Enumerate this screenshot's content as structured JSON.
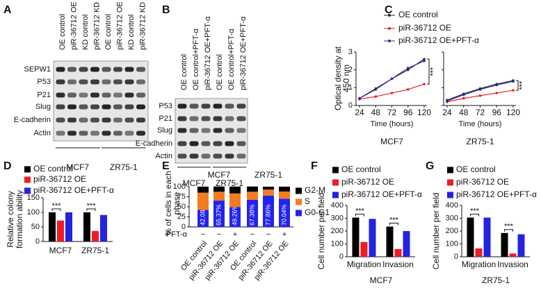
{
  "blots": [
    {
      "panel": "A",
      "lanes": [
        "OE control",
        "piR-36712 OE",
        "KD control",
        "piR-36712 KD",
        "OE control",
        "piR-36712 OE",
        "KD control",
        "piR-36712 KD"
      ],
      "proteins": [
        "SEPW1",
        "P53",
        "P21",
        "Slug",
        "E-cadherin",
        "Actin"
      ],
      "groups": [
        "MCF7",
        "ZR75-1"
      ]
    },
    {
      "panel": "B",
      "lanes": [
        "OE control",
        "OE control+PFT-α",
        "piR-36712 OE+PFT-α",
        "OE control",
        "OE control+PFT-α",
        "piR-36712 OE+PFT-α"
      ],
      "proteins": [
        "P53",
        "P21",
        "Slug",
        "E-cadherin",
        "Actin"
      ],
      "groups": [
        "MCF7",
        "ZR75-1"
      ]
    }
  ],
  "chart_data": [
    {
      "panel": "C",
      "type": "line",
      "ylabel": [
        "Optical density at",
        "450 nm"
      ],
      "xlabel": "Time (hours)",
      "x": [
        24,
        48,
        72,
        96,
        120
      ],
      "xlim": [
        24,
        120
      ],
      "xticks": [
        24,
        48,
        72,
        96,
        120
      ],
      "ylim": [
        0,
        3
      ],
      "yticks": [
        0,
        1,
        2,
        3
      ],
      "series": [
        {
          "name": "OE control",
          "color": "#222222"
        },
        {
          "name": "piR-36712 OE",
          "color": "#e8202a"
        },
        {
          "name": "piR-36712 OE+PFT-α",
          "color": "#2a2aa8"
        }
      ],
      "subplots": [
        {
          "title": "MCF7",
          "annotation": "***",
          "values": [
            [
              0.4,
              0.9,
              1.5,
              2.0,
              2.6
            ],
            [
              0.35,
              0.5,
              0.7,
              0.9,
              1.2
            ],
            [
              0.4,
              0.95,
              1.5,
              2.1,
              2.5
            ]
          ]
        },
        {
          "title": "ZR75-1",
          "annotation": "***",
          "values": [
            [
              0.3,
              0.65,
              0.95,
              1.2,
              1.4
            ],
            [
              0.2,
              0.4,
              0.55,
              0.7,
              0.85
            ],
            [
              0.25,
              0.6,
              0.9,
              1.15,
              1.35
            ]
          ]
        }
      ]
    },
    {
      "panel": "D",
      "type": "bar",
      "ylabel": [
        "Relative colony",
        "formation ability"
      ],
      "categories": [
        "MCF7",
        "ZR75-1"
      ],
      "ylim": [
        0,
        150
      ],
      "yticks": [
        0,
        50,
        100,
        150
      ],
      "annotations": [
        "***",
        "***"
      ],
      "series": [
        {
          "name": "OE control",
          "color": "#000000",
          "values": [
            100,
            100
          ]
        },
        {
          "name": "piR-36712 OE",
          "color": "#ee1c25",
          "values": [
            72,
            36
          ]
        },
        {
          "name": "piR-36712 OE+PFT-α",
          "color": "#2323e0",
          "values": [
            100,
            91
          ]
        }
      ]
    },
    {
      "panel": "E",
      "type": "stacked_bar",
      "ylabel": [
        "% of cells in each",
        "phase"
      ],
      "groups": [
        "MCF7",
        "ZR75-1"
      ],
      "categories": [
        "OE control",
        "piR-36712 OE",
        "piR-36712 OE",
        "OE control",
        "piR-36712 OE",
        "piR-36712 OE"
      ],
      "pft_label": "PFT-α",
      "pft": [
        "−",
        "−",
        "+",
        "−",
        "−",
        "+"
      ],
      "ylim": [
        0,
        100
      ],
      "yticks": [
        0,
        25,
        50,
        75,
        100
      ],
      "series": [
        {
          "name": "G0-G1",
          "color": "#2323f0",
          "values": [
            42.08,
            65.37,
            49.26,
            67.38,
            77.86,
            70.04
          ],
          "value_labels": [
            "42.08%",
            "65.37%",
            "49.26%",
            "67.38%",
            "77.86%",
            "70.04%"
          ]
        },
        {
          "name": "S",
          "color": "#f47b20",
          "values": [
            43,
            22,
            34,
            20,
            15,
            18
          ]
        },
        {
          "name": "G2-M",
          "color": "#000000",
          "values": [
            15,
            13,
            17,
            13,
            7,
            12
          ]
        }
      ]
    },
    {
      "panel": "F",
      "type": "bar",
      "subtitle": "MCF7",
      "ylabel": [
        "Cell number per field"
      ],
      "categories": [
        "Migration",
        "Invasion"
      ],
      "ylim": [
        0,
        400
      ],
      "yticks": [
        0,
        100,
        200,
        300,
        400
      ],
      "annotations": [
        "***",
        "***"
      ],
      "series": [
        {
          "name": "OE control",
          "color": "#000000",
          "values": [
            305,
            235
          ]
        },
        {
          "name": "piR-36712 OE",
          "color": "#ee1c25",
          "values": [
            115,
            60
          ]
        },
        {
          "name": "piR-36712 OE+PFT-α",
          "color": "#2323e0",
          "values": [
            295,
            200
          ]
        }
      ]
    },
    {
      "panel": "G",
      "type": "bar",
      "subtitle": "ZR75-1",
      "ylabel": [
        "Cell number per field"
      ],
      "categories": [
        "Migration",
        "Invasion"
      ],
      "ylim": [
        0,
        400
      ],
      "yticks": [
        0,
        100,
        200,
        300,
        400
      ],
      "annotations": [
        "***",
        "***"
      ],
      "series": [
        {
          "name": "OE control",
          "color": "#000000",
          "values": [
            305,
            185
          ]
        },
        {
          "name": "piR-36712 OE",
          "color": "#ee1c25",
          "values": [
            65,
            25
          ]
        },
        {
          "name": "piR-36712 OE+PFT-α",
          "color": "#2323e0",
          "values": [
            305,
            175
          ]
        }
      ]
    }
  ]
}
